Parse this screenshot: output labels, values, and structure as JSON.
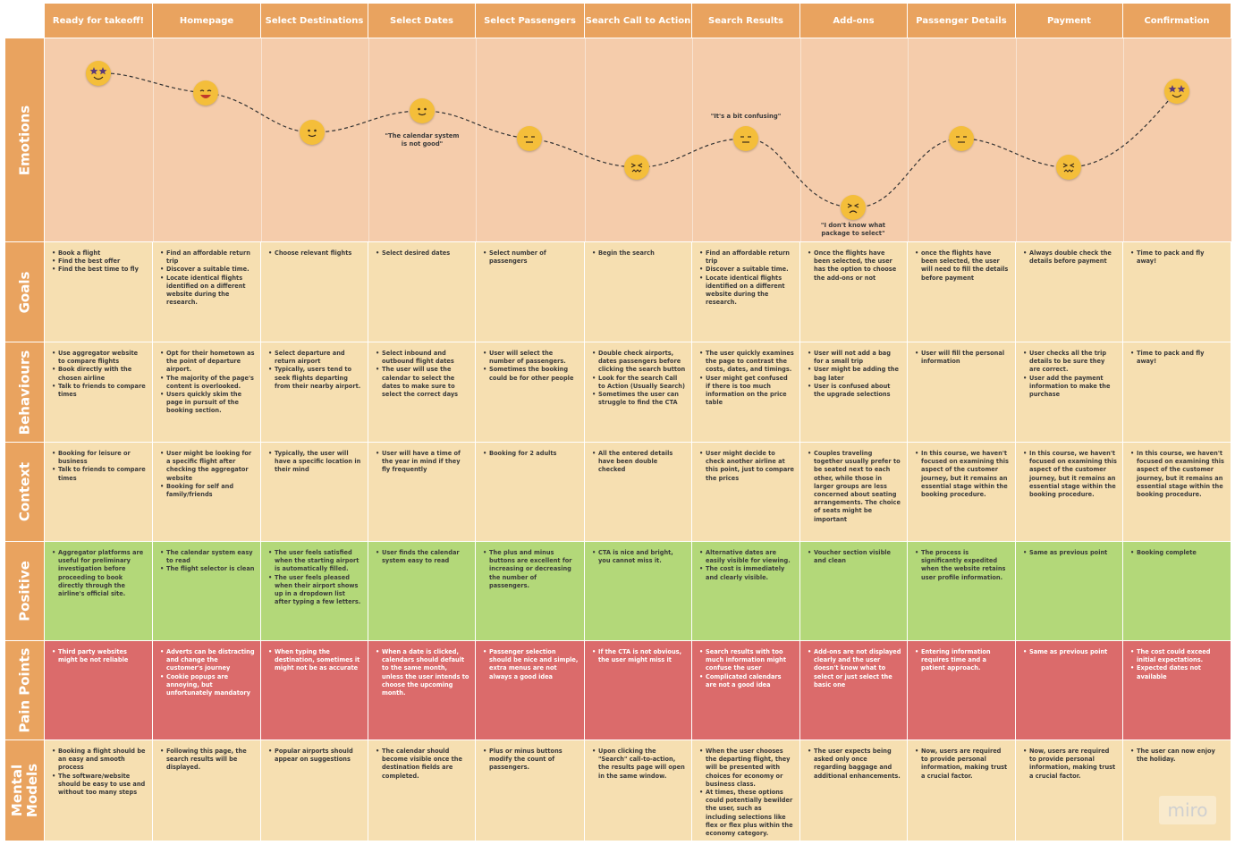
{
  "colors": {
    "header": "#e9a35f",
    "emotions_bg": "#f5ccab",
    "goals_bg": "#f6dfb1",
    "positive_bg": "#b3d879",
    "pain_bg": "#db6b6b",
    "face": "#f4be3a",
    "face_star": "#5b3a7a"
  },
  "stages": [
    "Ready for takeoff!",
    "Homepage",
    "Select Destinations",
    "Select Dates",
    "Select Passengers",
    "Search Call to Action",
    "Search Results",
    "Add-ons",
    "Passenger Details",
    "Payment",
    "Confirmation"
  ],
  "row_labels": {
    "emotions": "Emotions",
    "goals": "Goals",
    "behaviours": "Behaviours",
    "context": "Context",
    "positive": "Positive",
    "pain": "Pain Points",
    "mental": "Mental Models"
  },
  "emotions": {
    "faces": [
      "star-eyes",
      "grin",
      "smile",
      "smile",
      "neutral",
      "frustrated",
      "neutral",
      "angry",
      "neutral",
      "frustrated",
      "star-eyes"
    ],
    "quotes": {
      "dates": "\"The calendar system is not good\"",
      "results": "\"It's a bit confusing\"",
      "addons": "\"I don't know what package to select\""
    }
  },
  "goals": [
    [
      "Book a flight",
      "Find the best offer",
      "Find the best time to fly"
    ],
    [
      "Find an affordable return trip",
      "Discover a suitable time.",
      "Locate identical flights identified on a different website during the research."
    ],
    [
      "Choose relevant flights"
    ],
    [
      "Select desired dates"
    ],
    [
      "Select number of passengers"
    ],
    [
      "Begin the search"
    ],
    [
      "Find an affordable return trip",
      "Discover a suitable time.",
      "Locate identical flights identified on a different website during the research."
    ],
    [
      "Once the flights have been selected, the user has the option to choose the add-ons or not"
    ],
    [
      "once the flights have been selected, the user will need to fill the details before payment"
    ],
    [
      "Always double check the details before payment"
    ],
    [
      "Time to pack and fly away!"
    ]
  ],
  "behaviours": [
    [
      "Use aggregator website to compare flights",
      "Book directly with the chosen airline",
      "Talk to friends to compare times"
    ],
    [
      "Opt for their hometown as the point of departure airport.",
      "The majority of the page's content is overlooked.",
      "Users quickly skim the page in pursuit of the booking section."
    ],
    [
      "Select departure and return airport",
      "Typically, users tend to seek flights departing from their nearby airport."
    ],
    [
      "Select inbound and outbound flight dates",
      "The user will use the calendar to select the dates to make sure to select the correct days"
    ],
    [
      "User will select the number of passengers.",
      "Sometimes the booking could be for other people"
    ],
    [
      "Double check airports, dates passengers before clicking the search button",
      "Look for the search Call to Action (Usually Search)",
      "Sometimes the user can struggle to find the CTA"
    ],
    [
      "The user quickly examines the page to contrast the costs, dates, and timings.",
      "User might get confused if there is too much information on the price table"
    ],
    [
      "User will not add a bag for a small trip",
      "User might be adding the bag later",
      "User is confused about the upgrade selections"
    ],
    [
      "User will fill the personal information"
    ],
    [
      "User checks all the trip details to be sure they are correct.",
      "User add the payment information to make the purchase"
    ],
    [
      "Time to pack and fly away!"
    ]
  ],
  "context": [
    [
      "Booking for leisure or business",
      "Talk to friends to compare times"
    ],
    [
      "User might be looking for a specific flight after checking the aggregator website",
      "Booking for self and family/friends"
    ],
    [
      "Typically, the user will have a specific location in their mind"
    ],
    [
      "User will have a time of the year in mind if they fly frequently"
    ],
    [
      "Booking for 2 adults"
    ],
    [
      "All the entered details have been double checked"
    ],
    [
      "User might decide to check another airline at this point, just to compare the prices"
    ],
    [
      "Couples traveling together usually prefer to be seated next to each other, while those in larger groups are less concerned about seating arrangements. The choice of seats might be important"
    ],
    [
      "In this course, we haven't focused on examining this aspect of the customer journey, but it remains an essential stage within the booking procedure."
    ],
    [
      "In this course, we haven't focused on examining this aspect of the customer journey, but it remains an essential stage within the booking procedure."
    ],
    [
      "In this course, we haven't focused on examining this aspect of the customer journey, but it remains an essential stage within the booking procedure."
    ]
  ],
  "positive": [
    [
      "Aggregator platforms are useful for preliminary investigation before proceeding to book directly through the airline's official site."
    ],
    [
      "The calendar system easy to read",
      "The flight selector is clean"
    ],
    [
      "The user feels satisfied when the starting airport is automatically filled.",
      "The user feels pleased when their airport shows up in a dropdown list after typing a few letters."
    ],
    [
      "User finds the calendar system easy to read"
    ],
    [
      "The plus and minus buttons are excellent for increasing or decreasing the number of passengers."
    ],
    [
      "CTA is nice and bright, you cannot miss it."
    ],
    [
      "Alternative dates are easily visible for viewing.",
      "The cost is immediately and clearly visible."
    ],
    [
      "Voucher section visible and clean"
    ],
    [
      "The process is significantly expedited when the website retains user profile information."
    ],
    [
      "Same as previous point"
    ],
    [
      "Booking complete"
    ]
  ],
  "pain": [
    [
      "Third party websites might be not reliable"
    ],
    [
      "Adverts can be distracting and change the customer's journey",
      "Cookie popups are annoying, but unfortunately mandatory"
    ],
    [
      "When typing the destination, sometimes it might not be as accurate"
    ],
    [
      "When a date is clicked, calendars should default to the same month, unless the user intends to choose the upcoming month."
    ],
    [
      "Passenger selection should be nice and simple, extra menus are not always a good idea"
    ],
    [
      "If the CTA is not obvious, the user might miss it"
    ],
    [
      "Search results with too much information might confuse the user",
      "Complicated calendars are not a good idea"
    ],
    [
      "Add-ons are not displayed clearly and the user doesn't know what to select or just select the basic one"
    ],
    [
      "Entering information requires time and a patient approach."
    ],
    [
      "Same as previous point"
    ],
    [
      "The cost could exceed initial expectations.",
      "Expected dates not available"
    ]
  ],
  "mental": [
    [
      "Booking a flight should be an easy and smooth process",
      "The software/website should be easy to use and without too many steps"
    ],
    [
      "Following this page, the search results will be displayed."
    ],
    [
      "Popular airports should appear on suggestions"
    ],
    [
      "The calendar should become visible once the destination fields are completed."
    ],
    [
      "Plus or minus buttons modify the count of passengers."
    ],
    [
      "Upon clicking the \"Search\" call-to-action, the results page will open in the same window."
    ],
    [
      "When the user chooses the departing flight, they will be presented with choices for economy or business class.",
      "At times, these options could potentially bewilder the user, such as including selections like flex or flex plus within the economy category."
    ],
    [
      "The user expects being asked only once regarding baggage and additional enhancements."
    ],
    [
      "Now, users are required to provide personal information, making trust a crucial factor."
    ],
    [
      "Now, users are required to provide personal information, making trust a crucial factor."
    ],
    [
      "The user can now enjoy the holiday."
    ]
  ],
  "watermark": "miro"
}
